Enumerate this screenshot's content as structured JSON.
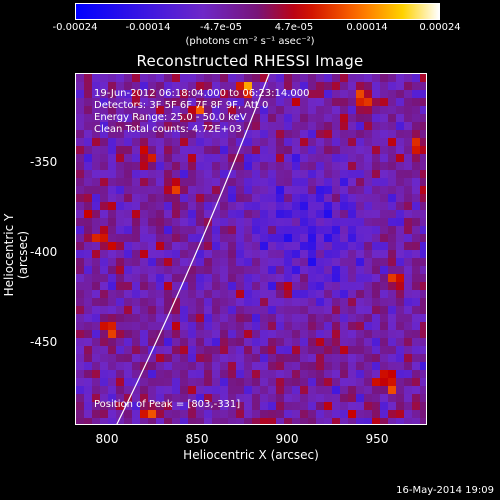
{
  "colorbar": {
    "ticks": [
      "-0.00024",
      "-0.00014",
      "-4.7e-05",
      "4.7e-05",
      "0.00014",
      "0.00024"
    ],
    "units": "(photons cm⁻² s⁻¹ asec⁻²)"
  },
  "title": "Reconstructed RHESSI Image",
  "info": {
    "time": "19-Jun-2012 06:18:04.000 to 06:23:14.000",
    "detectors": "Detectors: 3F 5F 6F 7F 8F 9F, Att 0",
    "energy": "Energy Range: 25.0 - 50.0 keV",
    "clean": "Clean    Total counts: 4.72E+03",
    "peak": "Position of Peak = [803,-331]"
  },
  "axes": {
    "xlabel": "Heliocentric X (arcsec)",
    "ylabel": "Heliocentric Y (arcsec)",
    "xticks": [
      "800",
      "850",
      "900",
      "950"
    ],
    "yticks": [
      "-350",
      "-400",
      "-450"
    ],
    "xrange": [
      780,
      977
    ],
    "yrange": [
      -322,
      -497
    ]
  },
  "datestamp": "16-May-2014 19:09"
}
